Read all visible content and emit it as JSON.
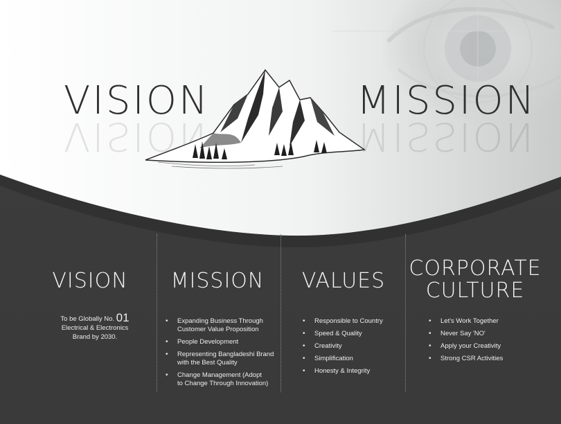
{
  "hero": {
    "left_title": "VISION",
    "right_title": "MISSION"
  },
  "columns": {
    "vision": {
      "title": "VISION",
      "text_prefix": "To be Globally No.",
      "text_number": "01",
      "text_rest_1": "Electrical & Electronics",
      "text_rest_2": "Brand by 2030."
    },
    "mission": {
      "title": "MISSION",
      "items": [
        {
          "line1": "Expanding Business Through",
          "line2": "Customer Value Proposition"
        },
        {
          "line1": "People Development",
          "line2": ""
        },
        {
          "line1": "Representing Bangladeshi Brand",
          "line2": "with the Best Quality"
        },
        {
          "line1": "Change Management (Adopt",
          "line2": "to Change Through Innovation)"
        }
      ]
    },
    "values": {
      "title": "VALUES",
      "items": [
        "Responsible to Country",
        "Speed & Quality",
        "Creativity",
        "Simplification",
        "Honesty & Integrity"
      ]
    },
    "culture": {
      "title_line1": "CORPORATE",
      "title_line2": "CULTURE",
      "items": [
        "Let's Work Together",
        "Never Say 'NO'",
        "Apply your Creativity",
        "Strong CSR Activities"
      ]
    }
  },
  "colors": {
    "dark_bg": "#3b3b3b",
    "light_bg": "#f4f5f5",
    "text_dark": "#2f2f2f",
    "text_light": "#f2f2f2"
  },
  "decorations": {
    "eye": "eye-image",
    "mountain": "mountain-illustration"
  }
}
